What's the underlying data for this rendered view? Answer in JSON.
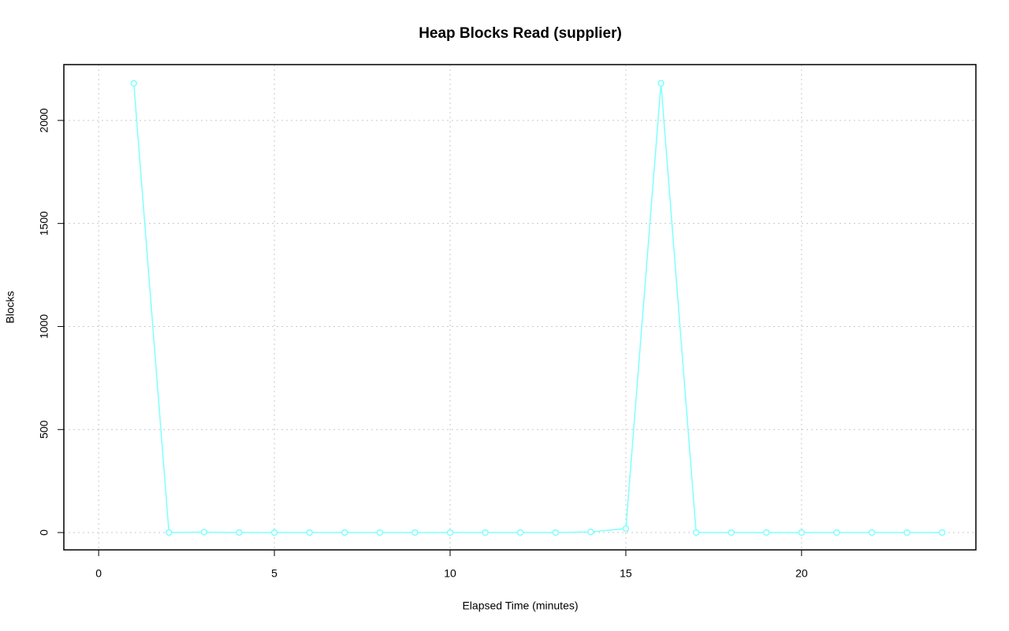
{
  "chart_data": {
    "type": "line",
    "title": "Heap Blocks Read (supplier)",
    "x_label": "Elapsed Time (minutes)",
    "y_label": "Blocks",
    "x": [
      1,
      2,
      3,
      4,
      5,
      6,
      7,
      8,
      9,
      10,
      11,
      12,
      13,
      14,
      15,
      16,
      17,
      18,
      19,
      20,
      21,
      22,
      23,
      24
    ],
    "series": [
      {
        "name": "supplier",
        "color": "#80ffff",
        "values": [
          2180,
          0,
          2,
          0,
          0,
          0,
          0,
          0,
          0,
          0,
          0,
          0,
          0,
          3,
          19,
          2180,
          0,
          0,
          0,
          0,
          0,
          0,
          0,
          0
        ]
      }
    ],
    "xlim": [
      -0.99,
      24.96
    ],
    "xticks": [
      0,
      5,
      10,
      15,
      20
    ],
    "ylim": [
      -84,
      2271
    ],
    "yticks": [
      0,
      500,
      1000,
      1500,
      2000
    ],
    "grid": true
  }
}
